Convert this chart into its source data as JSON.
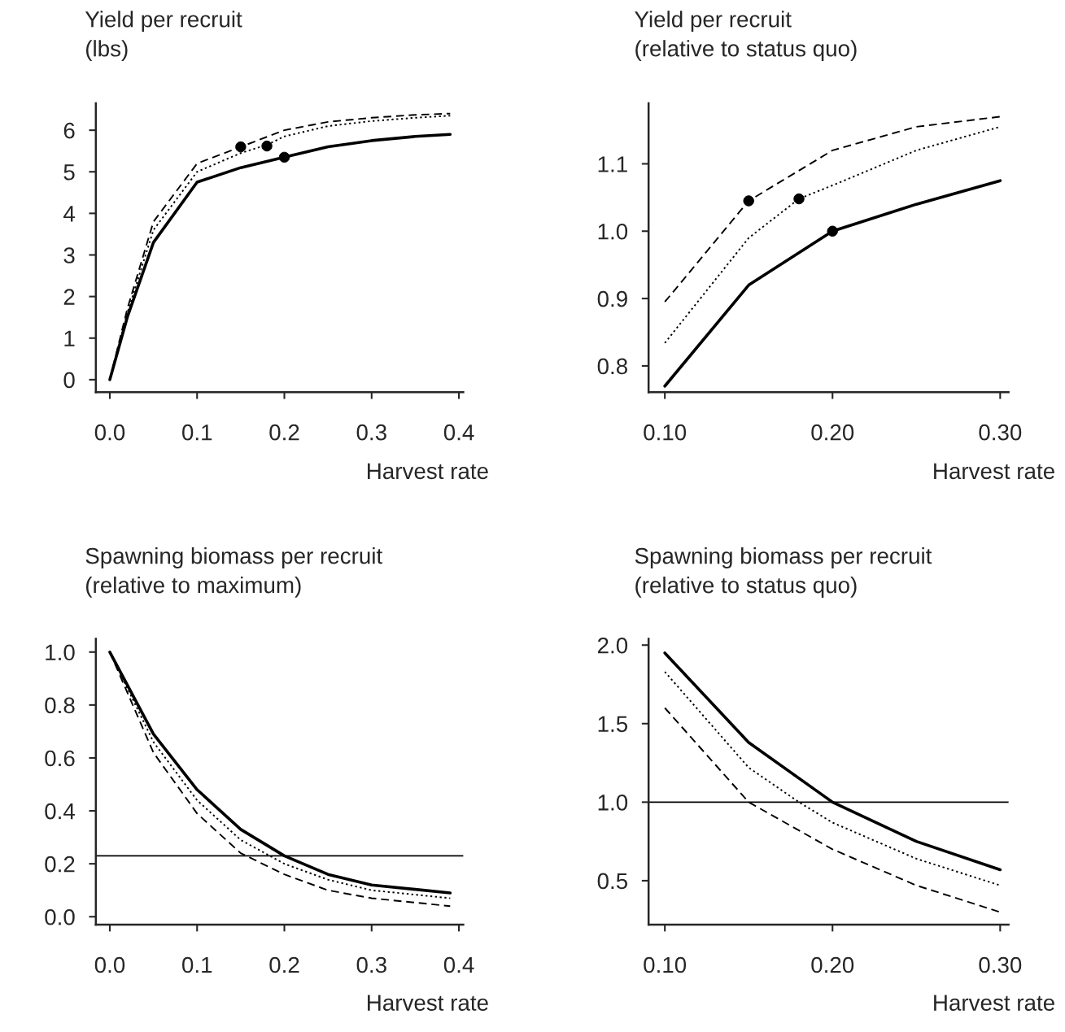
{
  "chart_data": [
    {
      "type": "line",
      "ylabel": "Yield per recruit\n(lbs)",
      "xlabel": "Harvest rate",
      "xlim": [
        -0.016,
        0.405
      ],
      "ylim": [
        -0.3,
        6.65
      ],
      "xticks": [
        {
          "value": 0,
          "label": "0.0"
        },
        0.1,
        0.2,
        0.3,
        0.4
      ],
      "yticks": [
        0,
        1,
        2,
        3,
        4,
        5,
        6
      ],
      "grid": false,
      "legend": false,
      "series": [
        {
          "color": "#000000",
          "line_style": "solid",
          "x": [
            0,
            0.02,
            0.05,
            0.1,
            0.15,
            0.2,
            0.25,
            0.3,
            0.35,
            0.39
          ],
          "values": [
            0,
            1.5,
            3.3,
            4.75,
            5.1,
            5.35,
            5.6,
            5.75,
            5.85,
            5.9
          ]
        },
        {
          "color": "#000000",
          "line_style": "dotted",
          "x": [
            0,
            0.02,
            0.05,
            0.1,
            0.15,
            0.18,
            0.2,
            0.25,
            0.3,
            0.35,
            0.39
          ],
          "values": [
            0,
            1.6,
            3.6,
            5.0,
            5.45,
            5.65,
            5.85,
            6.1,
            6.22,
            6.3,
            6.35
          ]
        },
        {
          "color": "#000000",
          "line_style": "dashed",
          "x": [
            0,
            0.02,
            0.05,
            0.1,
            0.15,
            0.2,
            0.25,
            0.3,
            0.35,
            0.39
          ],
          "values": [
            0,
            1.7,
            3.8,
            5.2,
            5.6,
            6.0,
            6.2,
            6.3,
            6.37,
            6.4
          ]
        },
        {
          "type": "scatter",
          "color": "#000000",
          "marker": "circle",
          "x": [
            0.15,
            0.18,
            0.2
          ],
          "values": [
            5.6,
            5.62,
            5.35
          ]
        }
      ]
    },
    {
      "type": "line",
      "ylabel": "Yield per recruit\n(relative to status quo)",
      "xlabel": "Harvest rate",
      "xlim": [
        0.0903,
        0.305
      ],
      "ylim": [
        0.761,
        1.19
      ],
      "xticks": [
        {
          "value": 0.1,
          "label": "0.10"
        },
        {
          "value": 0.2,
          "label": "0.20"
        },
        {
          "value": 0.3,
          "label": "0.30"
        }
      ],
      "yticks": [
        0.8,
        0.9,
        {
          "value": 1,
          "label": "1.0"
        },
        1.1
      ],
      "grid": false,
      "legend": false,
      "series": [
        {
          "color": "#000000",
          "line_style": "solid",
          "x": [
            0.1,
            0.15,
            0.2,
            0.25,
            0.3
          ],
          "values": [
            0.77,
            0.92,
            1.0,
            1.04,
            1.075
          ]
        },
        {
          "color": "#000000",
          "line_style": "dotted",
          "x": [
            0.1,
            0.15,
            0.18,
            0.2,
            0.25,
            0.3
          ],
          "values": [
            0.834,
            0.99,
            1.048,
            1.068,
            1.12,
            1.155
          ]
        },
        {
          "color": "#000000",
          "line_style": "dashed",
          "x": [
            0.1,
            0.15,
            0.2,
            0.25,
            0.3
          ],
          "values": [
            0.895,
            1.045,
            1.12,
            1.155,
            1.17
          ]
        },
        {
          "type": "scatter",
          "color": "#000000",
          "marker": "circle",
          "x": [
            0.15,
            0.18,
            0.2
          ],
          "values": [
            1.045,
            1.048,
            1.0
          ]
        }
      ]
    },
    {
      "type": "line",
      "ylabel": "Spawning biomass per recruit\n(relative to maximum)",
      "xlabel": "Harvest rate",
      "xlim": [
        -0.016,
        0.405
      ],
      "ylim": [
        -0.03,
        1.05
      ],
      "xticks": [
        {
          "value": 0,
          "label": "0.0"
        },
        0.1,
        0.2,
        0.3,
        0.4
      ],
      "yticks": [
        {
          "value": 0,
          "label": "0.0"
        },
        0.2,
        0.4,
        0.6,
        0.8,
        {
          "value": 1,
          "label": "1.0"
        }
      ],
      "grid": false,
      "legend": false,
      "ref_lines": [
        {
          "axis": "y",
          "value": 0.23,
          "color": "#000000",
          "line_style": "solid"
        }
      ],
      "series": [
        {
          "color": "#000000",
          "line_style": "solid",
          "x": [
            0,
            0.05,
            0.1,
            0.15,
            0.2,
            0.25,
            0.3,
            0.39
          ],
          "values": [
            1.0,
            0.69,
            0.48,
            0.33,
            0.23,
            0.16,
            0.12,
            0.09
          ]
        },
        {
          "color": "#000000",
          "line_style": "dotted",
          "x": [
            0,
            0.05,
            0.1,
            0.15,
            0.2,
            0.25,
            0.3,
            0.39
          ],
          "values": [
            1.0,
            0.66,
            0.44,
            0.29,
            0.2,
            0.14,
            0.1,
            0.07
          ]
        },
        {
          "color": "#000000",
          "line_style": "dashed",
          "x": [
            0,
            0.05,
            0.1,
            0.15,
            0.2,
            0.25,
            0.3,
            0.39
          ],
          "values": [
            1.0,
            0.62,
            0.39,
            0.24,
            0.16,
            0.1,
            0.07,
            0.04
          ]
        }
      ]
    },
    {
      "type": "line",
      "ylabel": "Spawning biomass per recruit\n(relative to status quo)",
      "xlabel": "Harvest rate",
      "xlim": [
        0.0903,
        0.305
      ],
      "ylim": [
        0.22,
        2.04
      ],
      "xticks": [
        {
          "value": 0.1,
          "label": "0.10"
        },
        {
          "value": 0.2,
          "label": "0.20"
        },
        {
          "value": 0.3,
          "label": "0.30"
        }
      ],
      "yticks": [
        0.5,
        {
          "value": 1,
          "label": "1.0"
        },
        1.5,
        {
          "value": 2,
          "label": "2.0"
        }
      ],
      "grid": false,
      "legend": false,
      "ref_lines": [
        {
          "axis": "y",
          "value": 1.0,
          "color": "#000000",
          "line_style": "solid"
        }
      ],
      "series": [
        {
          "color": "#000000",
          "line_style": "solid",
          "x": [
            0.1,
            0.15,
            0.2,
            0.25,
            0.3
          ],
          "values": [
            1.95,
            1.38,
            1.0,
            0.75,
            0.57
          ]
        },
        {
          "color": "#000000",
          "line_style": "dotted",
          "x": [
            0.1,
            0.15,
            0.18,
            0.2,
            0.25,
            0.3
          ],
          "values": [
            1.83,
            1.22,
            1.0,
            0.87,
            0.64,
            0.47
          ]
        },
        {
          "color": "#000000",
          "line_style": "dashed",
          "x": [
            0.1,
            0.15,
            0.2,
            0.25,
            0.3
          ],
          "values": [
            1.6,
            1.0,
            0.7,
            0.47,
            0.3
          ]
        }
      ]
    }
  ]
}
